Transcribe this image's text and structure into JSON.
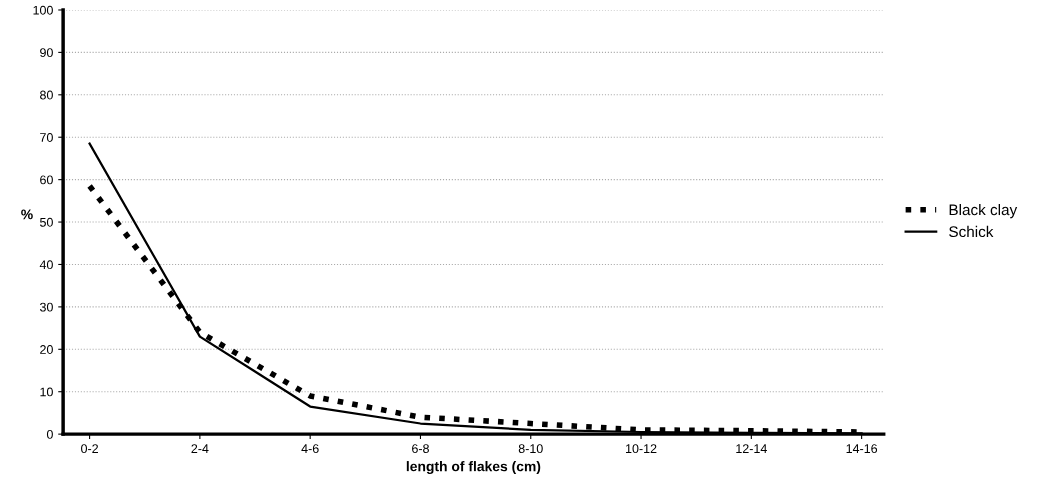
{
  "chart_data": {
    "type": "line",
    "xlabel": "length of flakes (cm)",
    "ylabel": "%",
    "categories": [
      "0-2",
      "2-4",
      "4-6",
      "6-8",
      "8-10",
      "10-12",
      "12-14",
      "14-16"
    ],
    "series": [
      {
        "name": "Black clay",
        "color": "#000000",
        "line_style": "dotted",
        "values": [
          58.5,
          24,
          9,
          4,
          2.5,
          1,
          0.8,
          0.5
        ]
      },
      {
        "name": "Schick",
        "color": "#000000",
        "line_style": "solid",
        "values": [
          68.5,
          23,
          6.5,
          2.5,
          1,
          0.5,
          0.3,
          0.2
        ]
      }
    ],
    "ylim": [
      0,
      100
    ],
    "yticks": [
      0,
      10,
      20,
      30,
      40,
      50,
      60,
      70,
      80,
      90,
      100
    ],
    "grid": "y",
    "legend": "right",
    "marker": "none"
  }
}
